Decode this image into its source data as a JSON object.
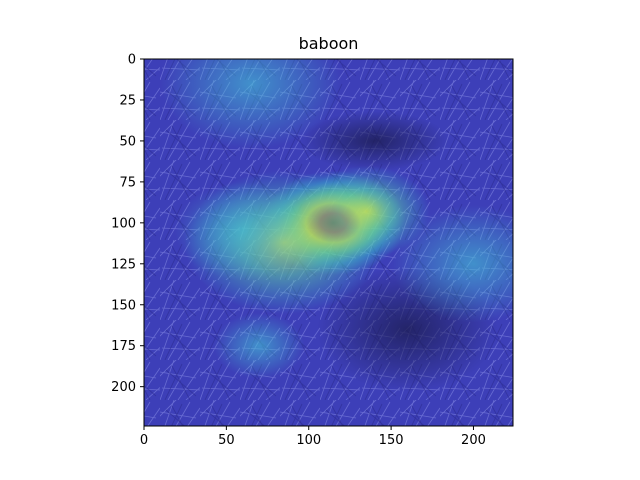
{
  "chart_data": {
    "type": "heatmap",
    "title": "baboon",
    "xlabel": "",
    "ylabel": "",
    "xlim": [
      0,
      224
    ],
    "ylim": [
      224,
      0
    ],
    "x_ticks": [
      "0",
      "50",
      "100",
      "150",
      "200"
    ],
    "y_ticks": [
      "0",
      "25",
      "50",
      "75",
      "100",
      "125",
      "150",
      "175",
      "200"
    ],
    "x_tick_values": [
      0,
      50,
      100,
      150,
      200
    ],
    "y_tick_values": [
      0,
      25,
      50,
      75,
      100,
      125,
      150,
      175,
      200
    ],
    "colormap": "jet",
    "overlay": "grad-cam heatmap over grayscale grass photo",
    "hotspots": [
      {
        "x": 115,
        "y": 100,
        "intensity": 1.0,
        "spread": 16
      },
      {
        "x": 135,
        "y": 93,
        "intensity": 0.55,
        "spread": 14
      },
      {
        "x": 85,
        "y": 112,
        "intensity": 0.45,
        "spread": 22
      },
      {
        "x": 60,
        "y": 105,
        "intensity": 0.3,
        "spread": 15
      },
      {
        "x": 200,
        "y": 125,
        "intensity": 0.28,
        "spread": 18
      },
      {
        "x": 70,
        "y": 175,
        "intensity": 0.25,
        "spread": 10
      },
      {
        "x": 65,
        "y": 15,
        "intensity": 0.2,
        "spread": 20
      }
    ]
  }
}
